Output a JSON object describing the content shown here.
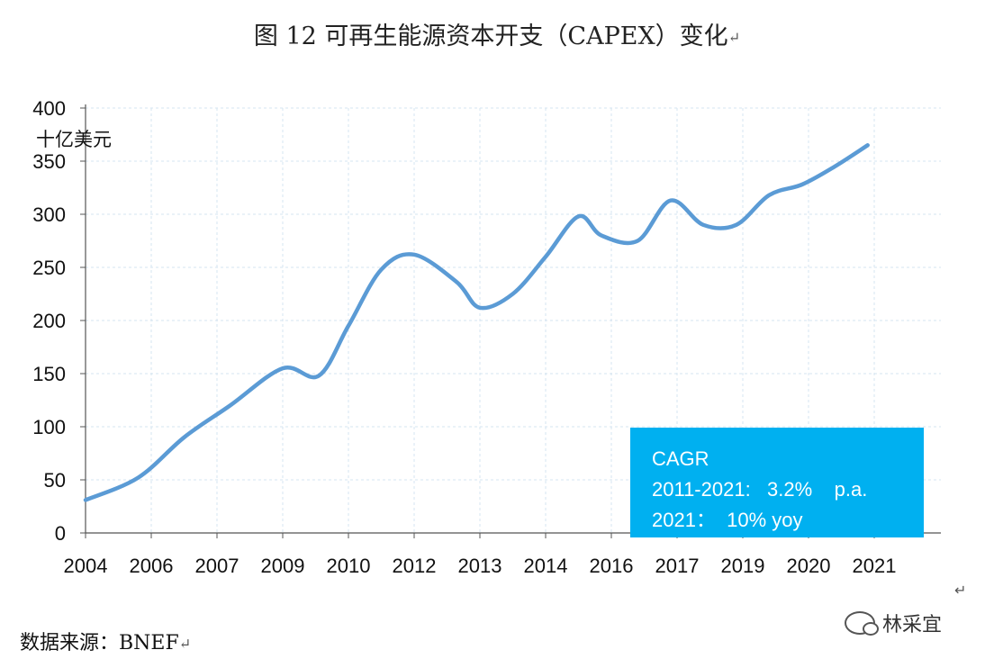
{
  "title": "图 12 可再生能源资本开支（CAPEX）变化",
  "title_return_mark": "↵",
  "source": "数据来源：BNEF",
  "source_return_mark": "↵",
  "floating_return_mark": "↵",
  "watermark": "林采宜",
  "cagr_box": {
    "heading": "CAGR",
    "line1": "2011-2021:   3.2%    p.a.",
    "line2": "2021：  10% yoy"
  },
  "colors": {
    "line": "#5b9bd5",
    "grid": "#d6e4f0",
    "box": "#00b0f0"
  },
  "chart_data": {
    "type": "line",
    "title": "图 12 可再生能源资本开支（CAPEX）变化",
    "ylabel": "十亿美元",
    "xlabel": "",
    "ylim": [
      0,
      400
    ],
    "yticks": [
      0,
      50,
      100,
      150,
      200,
      250,
      300,
      350,
      400
    ],
    "x_ticks": [
      "2004",
      "2006",
      "2007",
      "2009",
      "2010",
      "2012",
      "2013",
      "2014",
      "2016",
      "2017",
      "2019",
      "2020",
      "2021"
    ],
    "series": [
      {
        "name": "可再生能源资本开支",
        "x": [
          0,
          0.8,
          1.5,
          2.2,
          3.0,
          3.55,
          4.0,
          4.5,
          5.0,
          5.65,
          6.0,
          6.5,
          7.0,
          7.5,
          7.85,
          8.4,
          8.9,
          9.4,
          9.9,
          10.4,
          10.9,
          11.4,
          11.9
        ],
        "values": [
          31,
          52,
          90,
          120,
          155,
          148,
          195,
          248,
          262,
          236,
          212,
          225,
          260,
          298,
          280,
          275,
          313,
          290,
          290,
          318,
          328,
          345,
          365
        ]
      }
    ]
  }
}
